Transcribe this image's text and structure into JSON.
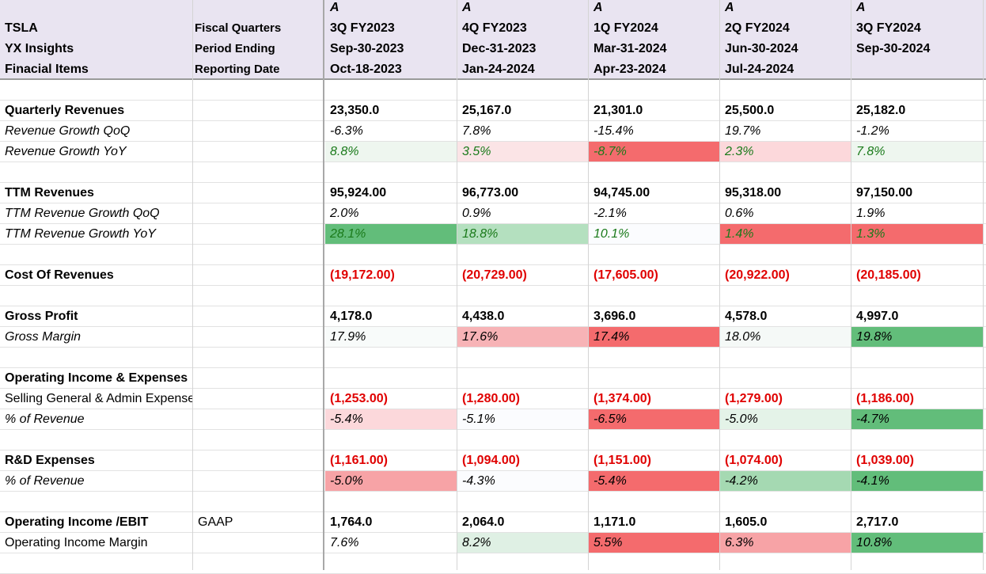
{
  "header": {
    "left": [
      "TSLA",
      "YX Insights",
      "Finacial Items"
    ],
    "mid": [
      "Fiscal Quarters",
      "Period Ending",
      "Reporting Date"
    ],
    "columns": [
      {
        "flag": "A",
        "quarter": "3Q FY2023",
        "period": "Sep-30-2023",
        "report": "Oct-18-2023"
      },
      {
        "flag": "A",
        "quarter": "4Q FY2023",
        "period": "Dec-31-2023",
        "report": "Jan-24-2024"
      },
      {
        "flag": "A",
        "quarter": "1Q FY2024",
        "period": "Mar-31-2024",
        "report": "Apr-23-2024"
      },
      {
        "flag": "A",
        "quarter": "2Q FY2024",
        "period": "Jun-30-2024",
        "report": "Jul-24-2024"
      },
      {
        "flag": "A",
        "quarter": "3Q FY2024",
        "period": "Sep-30-2024",
        "report": ""
      }
    ]
  },
  "rows": [
    {
      "label": "",
      "note": "",
      "values": [
        "",
        "",
        "",
        "",
        ""
      ]
    },
    {
      "label": "Quarterly Revenues",
      "note": "",
      "style": "bold",
      "values": [
        "23,350.0",
        "25,167.0",
        "21,301.0",
        "25,500.0",
        "25,182.0"
      ]
    },
    {
      "label": "Revenue Growth QoQ",
      "note": "",
      "style": "italic",
      "values": [
        "-6.3%",
        "7.8%",
        "-15.4%",
        "19.7%",
        "-1.2%"
      ]
    },
    {
      "label": "Revenue Growth YoY",
      "note": "",
      "style": "italic",
      "valstyle": "green",
      "values": [
        "8.8%",
        "3.5%",
        "-8.7%",
        "2.3%",
        "7.8%"
      ],
      "fills": [
        "#eef6ef",
        "#fbe4e6",
        "#f46b6d",
        "#fcd8db",
        "#eef6ef"
      ]
    },
    {
      "label": "",
      "note": "",
      "values": [
        "",
        "",
        "",
        "",
        ""
      ]
    },
    {
      "label": "TTM Revenues",
      "note": "",
      "style": "bold",
      "values": [
        "95,924.00",
        "96,773.00",
        "94,745.00",
        "95,318.00",
        "97,150.00"
      ]
    },
    {
      "label": "TTM Revenue Growth QoQ",
      "note": "",
      "style": "italic",
      "values": [
        "2.0%",
        "0.9%",
        "-2.1%",
        "0.6%",
        "1.9%"
      ]
    },
    {
      "label": "TTM Revenue Growth YoY",
      "note": "",
      "style": "italic",
      "valstyle": "green",
      "values": [
        "28.1%",
        "18.8%",
        "10.1%",
        "1.4%",
        "1.3%"
      ],
      "fills": [
        "#62bd7a",
        "#b4e0bf",
        "#fbfcfe",
        "#f46b6d",
        "#f46b6d"
      ]
    },
    {
      "label": "",
      "note": "",
      "values": [
        "",
        "",
        "",
        "",
        ""
      ]
    },
    {
      "label": "Cost Of Revenues",
      "note": "",
      "style": "bold",
      "valstyle": "red",
      "values": [
        "(19,172.00)",
        "(20,729.00)",
        "(17,605.00)",
        "(20,922.00)",
        "(20,185.00)"
      ]
    },
    {
      "label": "",
      "note": "",
      "values": [
        "",
        "",
        "",
        "",
        ""
      ]
    },
    {
      "label": "Gross Profit",
      "note": "",
      "style": "bold",
      "values": [
        "4,178.0",
        "4,438.0",
        "3,696.0",
        "4,578.0",
        "4,997.0"
      ]
    },
    {
      "label": "Gross Margin",
      "note": "",
      "style": "italic",
      "values": [
        "17.9%",
        "17.6%",
        "17.4%",
        "18.0%",
        "19.8%"
      ],
      "fills": [
        "#f8fbfa",
        "#f7b3b6",
        "#f46b6d",
        "#f5f9f7",
        "#62bd7a"
      ]
    },
    {
      "label": "",
      "note": "",
      "values": [
        "",
        "",
        "",
        "",
        ""
      ]
    },
    {
      "label": "Operating Income & Expenses",
      "note": "",
      "style": "bold",
      "values": [
        "",
        "",
        "",
        "",
        ""
      ]
    },
    {
      "label": "Selling General & Admin Expenses",
      "note": "",
      "style": "plain",
      "valstyle": "red",
      "values": [
        "(1,253.00)",
        "(1,280.00)",
        "(1,374.00)",
        "(1,279.00)",
        "(1,186.00)"
      ]
    },
    {
      "label": "% of Revenue",
      "note": "",
      "style": "italic",
      "values": [
        "-5.4%",
        "-5.1%",
        "-6.5%",
        "-5.0%",
        "-4.7%"
      ],
      "fills": [
        "#fcd8db",
        "#fbfcfe",
        "#f46b6d",
        "#e4f3e8",
        "#62bd7a"
      ]
    },
    {
      "label": "",
      "note": "",
      "values": [
        "",
        "",
        "",
        "",
        ""
      ]
    },
    {
      "label": "R&D Expenses",
      "note": "",
      "style": "bold",
      "valstyle": "red",
      "values": [
        "(1,161.00)",
        "(1,094.00)",
        "(1,151.00)",
        "(1,074.00)",
        "(1,039.00)"
      ]
    },
    {
      "label": "% of Revenue",
      "note": "",
      "style": "italic",
      "values": [
        "-5.0%",
        "-4.3%",
        "-5.4%",
        "-4.2%",
        "-4.1%"
      ],
      "fills": [
        "#f7a3a6",
        "#fbfcfe",
        "#f46b6d",
        "#a5d9b2",
        "#62bd7a"
      ]
    },
    {
      "label": "",
      "note": "",
      "values": [
        "",
        "",
        "",
        "",
        ""
      ]
    },
    {
      "label": "Operating Income /EBIT",
      "note": "GAAP",
      "style": "bold",
      "values": [
        "1,764.0",
        "2,064.0",
        "1,171.0",
        "1,605.0",
        "2,717.0"
      ]
    },
    {
      "label": "Operating Income Margin",
      "note": "",
      "style": "plain",
      "valstyle": "italic",
      "values": [
        "7.6%",
        "8.2%",
        "5.5%",
        "6.3%",
        "10.8%"
      ],
      "fills": [
        "#ffffff",
        "#dff0e4",
        "#f46b6d",
        "#f7a3a6",
        "#62bd7a"
      ]
    },
    {
      "label": "",
      "note": "",
      "values": [
        "",
        "",
        "",
        "",
        ""
      ]
    }
  ]
}
